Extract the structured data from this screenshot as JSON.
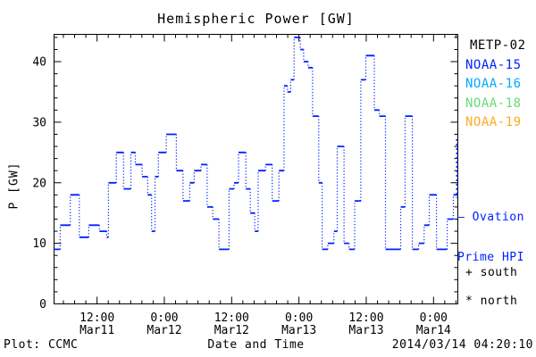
{
  "title": "Hemispheric Power [GW]",
  "axes": {
    "ylabel": "P [GW]",
    "xlabel": "Date and Time"
  },
  "footer": {
    "credit": "Plot: CCMC",
    "timestamp": "2014/03/14 04:20:10"
  },
  "legend": {
    "satellites": [
      {
        "label": "METP-02",
        "color": "#000000"
      },
      {
        "label": "NOAA-15",
        "color": "#0022ff"
      },
      {
        "label": "NOAA-16",
        "color": "#00aaff"
      },
      {
        "label": "NOAA-18",
        "color": "#66dd77"
      },
      {
        "label": "NOAA-19",
        "color": "#ffaa22"
      }
    ],
    "ovation_line1": "— Ovation",
    "ovation_line2": "Prime HPI",
    "ovation_color": "#0022ff",
    "markers": [
      "+ south",
      "* north"
    ]
  },
  "chart_data": {
    "type": "line",
    "style": "step-post, solid horizontal runs with dotted vertical risers",
    "title": "Hemispheric Power [GW]",
    "xlabel": "Date and Time",
    "ylabel": "P [GW]",
    "line_color": "#0022ff",
    "grid": false,
    "legend_position": "right",
    "ylim": [
      0,
      44.5
    ],
    "y_ticks": [
      0,
      10,
      20,
      30,
      40
    ],
    "y_minor_step": 2,
    "xlim_hours": [
      0,
      72
    ],
    "x_minor_step_hours": 2,
    "x_ticks": [
      {
        "hour": 7.67,
        "time": "12:00",
        "date": "Mar11"
      },
      {
        "hour": 19.67,
        "time": "0:00",
        "date": "Mar12"
      },
      {
        "hour": 31.67,
        "time": "12:00",
        "date": "Mar12"
      },
      {
        "hour": 43.67,
        "time": "0:00",
        "date": "Mar13"
      },
      {
        "hour": 55.67,
        "time": "12:00",
        "date": "Mar13"
      },
      {
        "hour": 67.67,
        "time": "0:00",
        "date": "Mar14"
      }
    ],
    "end_timestamp": "2014/03/14 04:20:10",
    "steps_hour_gw": [
      [
        0,
        9
      ],
      [
        1.1,
        13
      ],
      [
        2.9,
        18
      ],
      [
        4.5,
        11
      ],
      [
        6.2,
        13
      ],
      [
        8.1,
        12
      ],
      [
        9.4,
        11
      ],
      [
        9.7,
        20
      ],
      [
        11.1,
        25
      ],
      [
        12.4,
        19
      ],
      [
        13.7,
        25
      ],
      [
        14.5,
        23
      ],
      [
        15.7,
        21
      ],
      [
        16.7,
        18
      ],
      [
        17.4,
        12
      ],
      [
        18,
        21
      ],
      [
        18.6,
        25
      ],
      [
        20,
        28
      ],
      [
        21.8,
        22
      ],
      [
        23,
        17
      ],
      [
        24.2,
        20
      ],
      [
        25,
        22
      ],
      [
        26.2,
        23
      ],
      [
        27.3,
        16
      ],
      [
        28.3,
        14
      ],
      [
        29.4,
        9
      ],
      [
        31.2,
        19
      ],
      [
        32.1,
        20
      ],
      [
        32.9,
        25
      ],
      [
        34.2,
        19
      ],
      [
        35,
        15
      ],
      [
        35.8,
        12
      ],
      [
        36.4,
        22
      ],
      [
        37.7,
        23
      ],
      [
        38.9,
        17
      ],
      [
        40.1,
        22
      ],
      [
        41,
        36
      ],
      [
        41.6,
        35
      ],
      [
        42.2,
        37
      ],
      [
        42.8,
        44
      ],
      [
        43.9,
        42
      ],
      [
        44.5,
        40
      ],
      [
        45.3,
        39
      ],
      [
        46.1,
        31
      ],
      [
        47.2,
        20
      ],
      [
        47.8,
        9
      ],
      [
        48.8,
        10
      ],
      [
        49.9,
        12
      ],
      [
        50.5,
        26
      ],
      [
        51.7,
        10
      ],
      [
        52.6,
        9
      ],
      [
        53.6,
        17
      ],
      [
        54.7,
        37
      ],
      [
        55.6,
        41
      ],
      [
        57.1,
        32
      ],
      [
        58,
        31
      ],
      [
        59.1,
        9
      ],
      [
        61.8,
        16
      ],
      [
        62.6,
        31
      ],
      [
        63.9,
        9
      ],
      [
        65,
        10
      ],
      [
        66,
        13
      ],
      [
        66.9,
        18
      ],
      [
        68.2,
        9
      ],
      [
        70.1,
        14
      ],
      [
        71.2,
        18
      ]
    ],
    "ovation_end_segment_gw": {
      "top": 27.2,
      "bottom": 17.5
    }
  }
}
